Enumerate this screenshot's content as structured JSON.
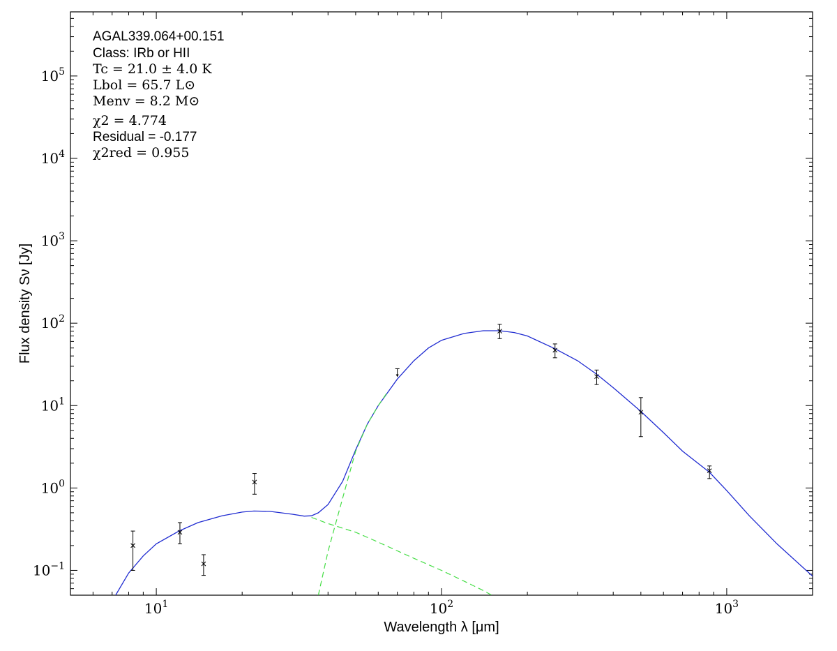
{
  "chart_data": {
    "type": "scatter",
    "title": "",
    "xlabel": "Wavelength λ [μm]",
    "ylabel": "Flux density Sν [Jy]",
    "xscale": "log",
    "yscale": "log",
    "xlim": [
      5,
      2000
    ],
    "ylim": [
      0.05,
      600000
    ],
    "grid": false,
    "x_ticks": [
      {
        "value": 10,
        "base": "10",
        "exp": "1"
      },
      {
        "value": 100,
        "base": "10",
        "exp": "2"
      },
      {
        "value": 1000,
        "base": "10",
        "exp": "3"
      }
    ],
    "y_ticks": [
      {
        "value": 0.1,
        "base": "10",
        "exp": "−1"
      },
      {
        "value": 1,
        "base": "10",
        "exp": "0"
      },
      {
        "value": 10,
        "base": "10",
        "exp": "1"
      },
      {
        "value": 100,
        "base": "10",
        "exp": "2"
      },
      {
        "value": 1000,
        "base": "10",
        "exp": "3"
      },
      {
        "value": 10000,
        "base": "10",
        "exp": "4"
      },
      {
        "value": 100000,
        "base": "10",
        "exp": "5"
      }
    ],
    "annotations": {
      "source": "AGAL339.064+00.151",
      "class": "Class: IRb or HII",
      "tc": "Tc = 21.0 ± 4.0 K",
      "lbol": "Lbol = 65.7 L⊙",
      "menv": "Menv = 8.2 M⊙",
      "chi2": "χ2 = 4.774",
      "residual": "Residual = -0.177",
      "chi2red": "χ2red = 0.955"
    },
    "series": [
      {
        "kind": "points",
        "color": "#000000",
        "points": [
          {
            "x": 8.28,
            "y": 0.2,
            "lo": 0.1,
            "hi": 0.3
          },
          {
            "x": 12.1,
            "y": 0.29,
            "lo": 0.21,
            "hi": 0.38
          },
          {
            "x": 14.65,
            "y": 0.12,
            "lo": 0.087,
            "hi": 0.155
          },
          {
            "x": 22.1,
            "y": 1.18,
            "lo": 0.84,
            "hi": 1.5
          },
          {
            "x": 160,
            "y": 80,
            "lo": 65,
            "hi": 97
          },
          {
            "x": 250,
            "y": 47,
            "lo": 38,
            "hi": 56
          },
          {
            "x": 350,
            "y": 22.5,
            "lo": 18,
            "hi": 27
          },
          {
            "x": 500,
            "y": 8.3,
            "lo": 4.2,
            "hi": 12.5
          },
          {
            "x": 870,
            "y": 1.62,
            "lo": 1.3,
            "hi": 1.85
          }
        ]
      },
      {
        "kind": "upper-limit",
        "color": "#000000",
        "points": [
          {
            "x": 70,
            "y": 28
          }
        ]
      },
      {
        "kind": "line",
        "color": "#1f2bd1",
        "x": [
          7.2,
          8,
          9,
          10,
          12,
          14,
          17,
          20,
          22,
          25,
          30,
          33,
          35,
          37,
          40,
          45,
          50,
          55,
          60,
          70,
          80,
          90,
          100,
          120,
          140,
          160,
          180,
          200,
          250,
          300,
          350,
          400,
          500,
          600,
          700,
          870,
          1000,
          1200,
          1500,
          2000
        ],
        "y": [
          0.05,
          0.093,
          0.15,
          0.21,
          0.3,
          0.38,
          0.46,
          0.51,
          0.525,
          0.52,
          0.48,
          0.455,
          0.46,
          0.5,
          0.63,
          1.2,
          2.9,
          6,
          10,
          21,
          35,
          50,
          62,
          75,
          81,
          81,
          77,
          70,
          49,
          35,
          24,
          16.5,
          8.5,
          4.7,
          2.8,
          1.55,
          0.93,
          0.46,
          0.21,
          0.085
        ]
      },
      {
        "kind": "dashed",
        "color": "#44dd44",
        "x": [
          35,
          40,
          50,
          60,
          80,
          100,
          120,
          140,
          150
        ],
        "y": [
          0.44,
          0.37,
          0.29,
          0.22,
          0.14,
          0.1,
          0.074,
          0.057,
          0.05
        ]
      },
      {
        "kind": "dashed",
        "color": "#44dd44",
        "x": [
          37,
          40,
          45,
          50,
          55,
          60,
          65
        ],
        "y": [
          0.05,
          0.17,
          0.75,
          2.8,
          6,
          10,
          15
        ]
      }
    ]
  }
}
